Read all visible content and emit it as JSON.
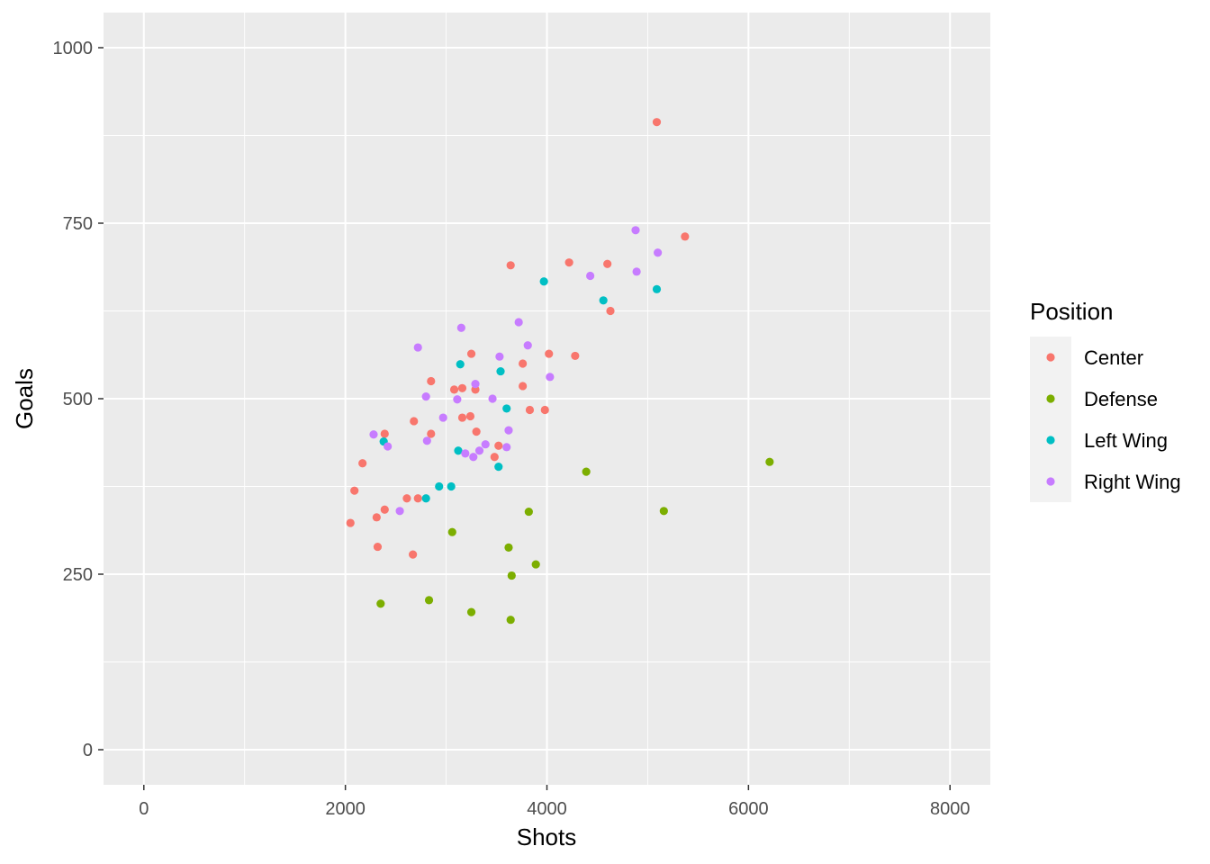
{
  "chart_data": {
    "type": "scatter",
    "title": "",
    "xlabel": "Shots",
    "ylabel": "Goals",
    "xlim": [
      -400,
      8400
    ],
    "ylim": [
      -50,
      1050
    ],
    "x_ticks": [
      0,
      2000,
      4000,
      6000,
      8000
    ],
    "y_ticks": [
      0,
      250,
      500,
      750,
      1000
    ],
    "x_tick_labels": [
      "0",
      "2000",
      "4000",
      "6000",
      "8000"
    ],
    "y_tick_labels": [
      "0",
      "250",
      "500",
      "750",
      "1000"
    ],
    "grid": true,
    "legend": {
      "title": "Position",
      "placement": "right"
    },
    "series": [
      {
        "name": "Center",
        "color": "#F8766D",
        "points": [
          [
            5090,
            894
          ],
          [
            5370,
            731
          ],
          [
            4220,
            694
          ],
          [
            4600,
            692
          ],
          [
            3640,
            690
          ],
          [
            4630,
            625
          ],
          [
            3250,
            564
          ],
          [
            4020,
            564
          ],
          [
            4280,
            561
          ],
          [
            3760,
            550
          ],
          [
            2850,
            525
          ],
          [
            3160,
            515
          ],
          [
            3080,
            513
          ],
          [
            3290,
            513
          ],
          [
            3760,
            518
          ],
          [
            3830,
            484
          ],
          [
            3980,
            484
          ],
          [
            2680,
            468
          ],
          [
            3240,
            475
          ],
          [
            3160,
            473
          ],
          [
            3300,
            453
          ],
          [
            2850,
            450
          ],
          [
            2390,
            450
          ],
          [
            3520,
            433
          ],
          [
            3480,
            417
          ],
          [
            2170,
            408
          ],
          [
            2090,
            369
          ],
          [
            2610,
            358
          ],
          [
            2720,
            358
          ],
          [
            2390,
            342
          ],
          [
            2310,
            331
          ],
          [
            2050,
            323
          ],
          [
            2320,
            289
          ],
          [
            2670,
            278
          ]
        ]
      },
      {
        "name": "Defense",
        "color": "#7CAE00",
        "points": [
          [
            6210,
            410
          ],
          [
            4390,
            396
          ],
          [
            5160,
            340
          ],
          [
            3820,
            339
          ],
          [
            3060,
            310
          ],
          [
            3620,
            288
          ],
          [
            3890,
            264
          ],
          [
            3650,
            248
          ],
          [
            2830,
            213
          ],
          [
            2350,
            208
          ],
          [
            3250,
            196
          ],
          [
            3640,
            185
          ]
        ]
      },
      {
        "name": "Left Wing",
        "color": "#00BFC4",
        "points": [
          [
            3970,
            667
          ],
          [
            4560,
            640
          ],
          [
            5090,
            656
          ],
          [
            3140,
            549
          ],
          [
            3540,
            539
          ],
          [
            3600,
            486
          ],
          [
            2380,
            439
          ],
          [
            3120,
            426
          ],
          [
            3520,
            403
          ],
          [
            2930,
            375
          ],
          [
            3050,
            375
          ],
          [
            2800,
            358
          ]
        ]
      },
      {
        "name": "Right Wing",
        "color": "#C77CFF",
        "points": [
          [
            4880,
            740
          ],
          [
            5100,
            708
          ],
          [
            4890,
            681
          ],
          [
            4430,
            675
          ],
          [
            3720,
            609
          ],
          [
            3150,
            601
          ],
          [
            3810,
            576
          ],
          [
            2720,
            573
          ],
          [
            3530,
            560
          ],
          [
            4030,
            531
          ],
          [
            3290,
            521
          ],
          [
            2800,
            503
          ],
          [
            3110,
            499
          ],
          [
            3460,
            500
          ],
          [
            2970,
            473
          ],
          [
            3620,
            455
          ],
          [
            2280,
            449
          ],
          [
            2420,
            432
          ],
          [
            2810,
            440
          ],
          [
            3390,
            435
          ],
          [
            3330,
            426
          ],
          [
            3600,
            431
          ],
          [
            3190,
            422
          ],
          [
            3270,
            417
          ],
          [
            2540,
            340
          ]
        ]
      }
    ]
  }
}
